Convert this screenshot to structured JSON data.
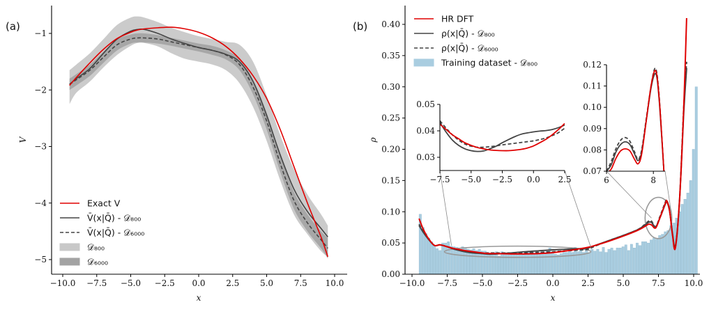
{
  "chart_data": [
    {
      "panel": "(a)",
      "type": "line",
      "title": "",
      "xlabel": "x",
      "ylabel": "V",
      "xlim": [
        -10.5,
        10.5
      ],
      "ylim": [
        -5.25,
        -0.5
      ],
      "xticks": [
        -10,
        -7.5,
        -5,
        -2.5,
        0,
        2.5,
        5,
        7.5,
        10
      ],
      "xtick_labels": [
        "−10.0",
        "−7.5",
        "−5.0",
        "−2.5",
        "0.0",
        "2.5",
        "5.0",
        "7.5",
        "10.0"
      ],
      "yticks": [
        -1,
        -2,
        -3,
        -4,
        -5
      ],
      "ytick_labels": [
        "−1",
        "−2",
        "−3",
        "−4",
        "−5"
      ],
      "grid": false,
      "legend_position": "bottom-left",
      "x": [
        -9.5,
        -9,
        -8,
        -7,
        -6,
        -5,
        -4.5,
        -4,
        -3,
        -2,
        -1,
        0,
        1,
        2,
        3,
        4,
        5,
        6,
        7,
        8,
        9,
        9.5
      ],
      "series": [
        {
          "name": "Exact V",
          "style": "solid",
          "color": "#e00000",
          "values": [
            -1.92,
            -1.78,
            -1.52,
            -1.28,
            -1.09,
            -0.98,
            -0.94,
            -0.92,
            -0.9,
            -0.89,
            -0.92,
            -0.98,
            -1.08,
            -1.23,
            -1.45,
            -1.75,
            -2.15,
            -2.7,
            -3.35,
            -4.0,
            -4.6,
            -4.95
          ]
        },
        {
          "name": "V̄(x|Q̄) - D800",
          "style": "solid",
          "color": "#444444",
          "values": [
            -1.9,
            -1.8,
            -1.62,
            -1.35,
            -1.1,
            -0.96,
            -0.93,
            -0.93,
            -1.0,
            -1.1,
            -1.18,
            -1.25,
            -1.3,
            -1.37,
            -1.5,
            -1.85,
            -2.45,
            -3.15,
            -3.75,
            -4.15,
            -4.45,
            -4.6
          ]
        },
        {
          "name": "V̄(x|Q̄) - D6000",
          "style": "dashed",
          "color": "#444444",
          "values": [
            -1.9,
            -1.82,
            -1.65,
            -1.42,
            -1.2,
            -1.1,
            -1.08,
            -1.08,
            -1.1,
            -1.15,
            -1.2,
            -1.25,
            -1.3,
            -1.38,
            -1.55,
            -1.95,
            -2.55,
            -3.3,
            -3.95,
            -4.35,
            -4.65,
            -4.8
          ]
        }
      ],
      "bands": [
        {
          "name": "D800",
          "color": "#c8c8c8",
          "upper": [
            -1.65,
            -1.55,
            -1.35,
            -1.1,
            -0.85,
            -0.72,
            -0.7,
            -0.72,
            -0.8,
            -0.9,
            -0.98,
            -1.05,
            -1.1,
            -1.15,
            -1.2,
            -1.5,
            -2.1,
            -2.8,
            -3.4,
            -3.85,
            -4.2,
            -4.4
          ],
          "lower": [
            -2.25,
            -2.05,
            -1.85,
            -1.6,
            -1.38,
            -1.22,
            -1.17,
            -1.17,
            -1.23,
            -1.35,
            -1.45,
            -1.5,
            -1.55,
            -1.65,
            -1.88,
            -2.3,
            -2.9,
            -3.6,
            -4.2,
            -4.55,
            -4.85,
            -4.95
          ]
        },
        {
          "name": "D6000",
          "color": "#a3a3a3",
          "upper": [
            -1.8,
            -1.72,
            -1.55,
            -1.32,
            -1.1,
            -1.02,
            -1.0,
            -1.0,
            -1.03,
            -1.08,
            -1.13,
            -1.18,
            -1.22,
            -1.3,
            -1.45,
            -1.82,
            -2.4,
            -3.15,
            -3.8,
            -4.2,
            -4.5,
            -4.62
          ]
        },
        {
          "name": "D6000-lower",
          "color": "#a3a3a3",
          "lower": [
            -2.0,
            -1.92,
            -1.75,
            -1.52,
            -1.3,
            -1.18,
            -1.16,
            -1.16,
            -1.18,
            -1.22,
            -1.27,
            -1.32,
            -1.38,
            -1.46,
            -1.65,
            -2.08,
            -2.7,
            -3.45,
            -4.1,
            -4.5,
            -4.8,
            -4.98
          ]
        }
      ],
      "legend": [
        {
          "label": "Exact V",
          "kind": "line-solid",
          "color": "#e00000"
        },
        {
          "label": "V̄(x|Q̄) - 𝒟₈₀₀",
          "kind": "line-solid",
          "color": "#444444"
        },
        {
          "label": "V̄(x|Q̄) - 𝒟₆₀₀₀",
          "kind": "line-dashed",
          "color": "#444444"
        },
        {
          "label": "𝒟₈₀₀",
          "kind": "patch",
          "color": "#c8c8c8"
        },
        {
          "label": "𝒟₆₀₀₀",
          "kind": "patch",
          "color": "#a3a3a3"
        }
      ]
    },
    {
      "panel": "(b)",
      "type": "line",
      "title": "",
      "xlabel": "x",
      "ylabel": "ρ",
      "xlim": [
        -10.5,
        10.5
      ],
      "ylim": [
        0,
        0.43
      ],
      "xticks": [
        -10,
        -7.5,
        -5,
        -2.5,
        0,
        2.5,
        5,
        7.5,
        10
      ],
      "xtick_labels": [
        "−10.0",
        "−7.5",
        "−5.0",
        "−2.5",
        "0.0",
        "2.5",
        "5.0",
        "7.5",
        "10.0"
      ],
      "yticks": [
        0,
        0.05,
        0.1,
        0.15,
        0.2,
        0.25,
        0.3,
        0.35,
        0.4
      ],
      "ytick_labels": [
        "0.00",
        "0.05",
        "0.10",
        "0.15",
        "0.20",
        "0.25",
        "0.30",
        "0.35",
        "0.40"
      ],
      "grid": false,
      "legend_position": "top-left",
      "x": [
        -9.5,
        -9.2,
        -8.8,
        -8.4,
        -8.0,
        -7.5,
        -7.0,
        -6.0,
        -5.0,
        -4.5,
        -4.0,
        -3.0,
        -2.0,
        -1.0,
        0.0,
        1.0,
        2.0,
        2.5,
        3.0,
        4.0,
        5.0,
        6.0,
        6.5,
        6.8,
        7.0,
        7.3,
        7.6,
        8.0,
        8.1,
        8.3,
        8.5,
        8.7,
        9.0,
        9.3,
        9.5
      ],
      "series": [
        {
          "name": "HR DFT",
          "style": "solid",
          "color": "#e00000",
          "values": [
            0.089,
            0.072,
            0.056,
            0.046,
            0.047,
            0.044,
            0.041,
            0.037,
            0.034,
            0.033,
            0.033,
            0.0325,
            0.0325,
            0.033,
            0.0345,
            0.0375,
            0.041,
            0.043,
            0.046,
            0.053,
            0.061,
            0.07,
            0.076,
            0.08,
            0.079,
            0.074,
            0.09,
            0.114,
            0.117,
            0.1,
            0.062,
            0.042,
            0.12,
            0.27,
            0.41
          ]
        },
        {
          "name": "ρ(x|Q̄) - D800",
          "style": "solid",
          "color": "#444444",
          "values": [
            0.078,
            0.067,
            0.055,
            0.046,
            0.047,
            0.044,
            0.04,
            0.035,
            0.033,
            0.032,
            0.0325,
            0.034,
            0.036,
            0.0375,
            0.039,
            0.04,
            0.041,
            0.042,
            0.046,
            0.054,
            0.062,
            0.071,
            0.078,
            0.083,
            0.083,
            0.076,
            0.09,
            0.113,
            0.116,
            0.1,
            0.065,
            0.045,
            0.12,
            0.26,
            0.33
          ]
        },
        {
          "name": "ρ(x|Q̄) - D6000",
          "style": "dashed",
          "color": "#444444",
          "values": [
            0.08,
            0.069,
            0.056,
            0.046,
            0.047,
            0.044,
            0.041,
            0.036,
            0.034,
            0.034,
            0.034,
            0.034,
            0.0345,
            0.035,
            0.036,
            0.0375,
            0.039,
            0.04,
            0.045,
            0.054,
            0.062,
            0.071,
            0.079,
            0.085,
            0.085,
            0.076,
            0.092,
            0.116,
            0.118,
            0.1,
            0.063,
            0.043,
            0.12,
            0.27,
            0.34
          ]
        }
      ],
      "histogram": {
        "name": "Training dataset - D800",
        "color": "#a9cde0",
        "edge_color": "#8fb8ce",
        "bin_start": -9.5,
        "bin_width": 0.2,
        "values": [
          0.096,
          0.075,
          0.065,
          0.058,
          0.052,
          0.046,
          0.041,
          0.038,
          0.05,
          0.05,
          0.052,
          0.045,
          0.044,
          0.043,
          0.04,
          0.044,
          0.042,
          0.04,
          0.039,
          0.041,
          0.038,
          0.04,
          0.037,
          0.037,
          0.035,
          0.034,
          0.035,
          0.036,
          0.029,
          0.036,
          0.034,
          0.033,
          0.034,
          0.035,
          0.033,
          0.032,
          0.034,
          0.032,
          0.035,
          0.036,
          0.035,
          0.033,
          0.034,
          0.036,
          0.034,
          0.039,
          0.042,
          0.036,
          0.032,
          0.031,
          0.033,
          0.035,
          0.035,
          0.039,
          0.035,
          0.043,
          0.036,
          0.04,
          0.035,
          0.042,
          0.035,
          0.04,
          0.037,
          0.04,
          0.036,
          0.043,
          0.035,
          0.04,
          0.042,
          0.038,
          0.042,
          0.042,
          0.044,
          0.047,
          0.038,
          0.048,
          0.042,
          0.05,
          0.046,
          0.052,
          0.052,
          0.05,
          0.055,
          0.058,
          0.056,
          0.062,
          0.064,
          0.068,
          0.07,
          0.078,
          0.082,
          0.09,
          0.1,
          0.112,
          0.12,
          0.13,
          0.15,
          0.2,
          0.3
        ]
      },
      "legend": [
        {
          "label": "HR DFT",
          "kind": "line-solid",
          "color": "#e00000"
        },
        {
          "label": "ρ(x|Q̄) - 𝒟₈₀₀",
          "kind": "line-solid",
          "color": "#444444"
        },
        {
          "label": "ρ(x|Q̄) - 𝒟₆₀₀₀",
          "kind": "line-dashed",
          "color": "#444444"
        },
        {
          "label": "Training dataset - 𝒟₈₀₀",
          "kind": "patch",
          "color": "#a9cde0"
        }
      ],
      "insets": [
        {
          "name": "zoom-left",
          "xlim": [
            -7.5,
            2.5
          ],
          "ylim": [
            0.025,
            0.05
          ],
          "xticks": [
            -7.5,
            -5,
            -2.5,
            0,
            2.5
          ],
          "xtick_labels": [
            "−7.5",
            "−5.0",
            "−2.5",
            "0.0",
            "2.5"
          ],
          "yticks": [
            0.03,
            0.04,
            0.05
          ],
          "ytick_labels": [
            "0.03",
            "0.04",
            "0.05"
          ],
          "highlight_ellipse_center": [
            -2.5,
            0.036
          ],
          "highlight_ellipse_radii": [
            5.2,
            0.009
          ],
          "x": [
            -7.5,
            -7.0,
            -6.5,
            -6.0,
            -5.5,
            -5.0,
            -4.5,
            -4.0,
            -3.5,
            -3.0,
            -2.5,
            -2.0,
            -1.5,
            -1.0,
            -0.5,
            0.0,
            0.5,
            1.0,
            1.5,
            2.0,
            2.5
          ],
          "series": [
            {
              "name": "HR DFT",
              "style": "solid",
              "color": "#e00000",
              "values": [
                0.0425,
                0.0405,
                0.0385,
                0.037,
                0.0355,
                0.0345,
                0.0337,
                0.0332,
                0.0328,
                0.0326,
                0.0325,
                0.0325,
                0.0327,
                0.033,
                0.0335,
                0.0343,
                0.0355,
                0.0368,
                0.0385,
                0.0405,
                0.0428
              ]
            },
            {
              "name": "ρ(x|Q̄) - D800",
              "style": "solid",
              "color": "#444444",
              "values": [
                0.0432,
                0.0395,
                0.0365,
                0.0345,
                0.0332,
                0.0325,
                0.0322,
                0.0324,
                0.0332,
                0.0342,
                0.0355,
                0.0367,
                0.0378,
                0.0387,
                0.0392,
                0.0396,
                0.0399,
                0.0401,
                0.0405,
                0.0412,
                0.0422
              ]
            },
            {
              "name": "ρ(x|Q̄) - D6000",
              "style": "dashed",
              "color": "#444444",
              "values": [
                0.0438,
                0.041,
                0.0385,
                0.0365,
                0.035,
                0.0342,
                0.0338,
                0.0338,
                0.034,
                0.0343,
                0.0347,
                0.035,
                0.0353,
                0.0356,
                0.0359,
                0.0362,
                0.0367,
                0.0373,
                0.0382,
                0.0393,
                0.041
              ]
            }
          ]
        },
        {
          "name": "zoom-right",
          "xlim": [
            6,
            8.5
          ],
          "ylim": [
            0.07,
            0.12
          ],
          "xticks": [
            6,
            8
          ],
          "xtick_labels": [
            "6",
            "8"
          ],
          "yticks": [
            0.07,
            0.08,
            0.09,
            0.1,
            0.11,
            0.12
          ],
          "ytick_labels": [
            "0.07",
            "0.08",
            "0.09",
            "0.10",
            "0.11",
            "0.12"
          ],
          "highlight_ellipse_center": [
            7.5,
            0.09
          ],
          "highlight_ellipse_radii": [
            0.95,
            0.033
          ],
          "x": [
            6.0,
            6.2,
            6.4,
            6.6,
            6.8,
            7.0,
            7.2,
            7.35,
            7.5,
            7.7,
            7.9,
            8.05,
            8.15,
            8.25,
            8.35,
            8.45
          ],
          "series": [
            {
              "name": "HR DFT",
              "style": "solid",
              "color": "#e00000",
              "values": [
                0.069,
                0.071,
                0.076,
                0.0795,
                0.0805,
                0.0795,
                0.0755,
                0.0735,
                0.078,
                0.094,
                0.11,
                0.117,
                0.115,
                0.104,
                0.088,
                0.07
              ]
            },
            {
              "name": "ρ(x|Q̄) - D800",
              "style": "solid",
              "color": "#444444",
              "values": [
                0.07,
                0.073,
                0.079,
                0.0825,
                0.0838,
                0.0825,
                0.078,
                0.075,
                0.079,
                0.094,
                0.109,
                0.1155,
                0.114,
                0.103,
                0.087,
                0.07
              ]
            },
            {
              "name": "ρ(x|Q̄) - D6000",
              "style": "dashed",
              "color": "#444444",
              "values": [
                0.07,
                0.0745,
                0.0805,
                0.0845,
                0.0858,
                0.084,
                0.079,
                0.0755,
                0.08,
                0.095,
                0.11,
                0.118,
                0.116,
                0.105,
                0.088,
                0.07
              ]
            }
          ]
        }
      ]
    }
  ]
}
